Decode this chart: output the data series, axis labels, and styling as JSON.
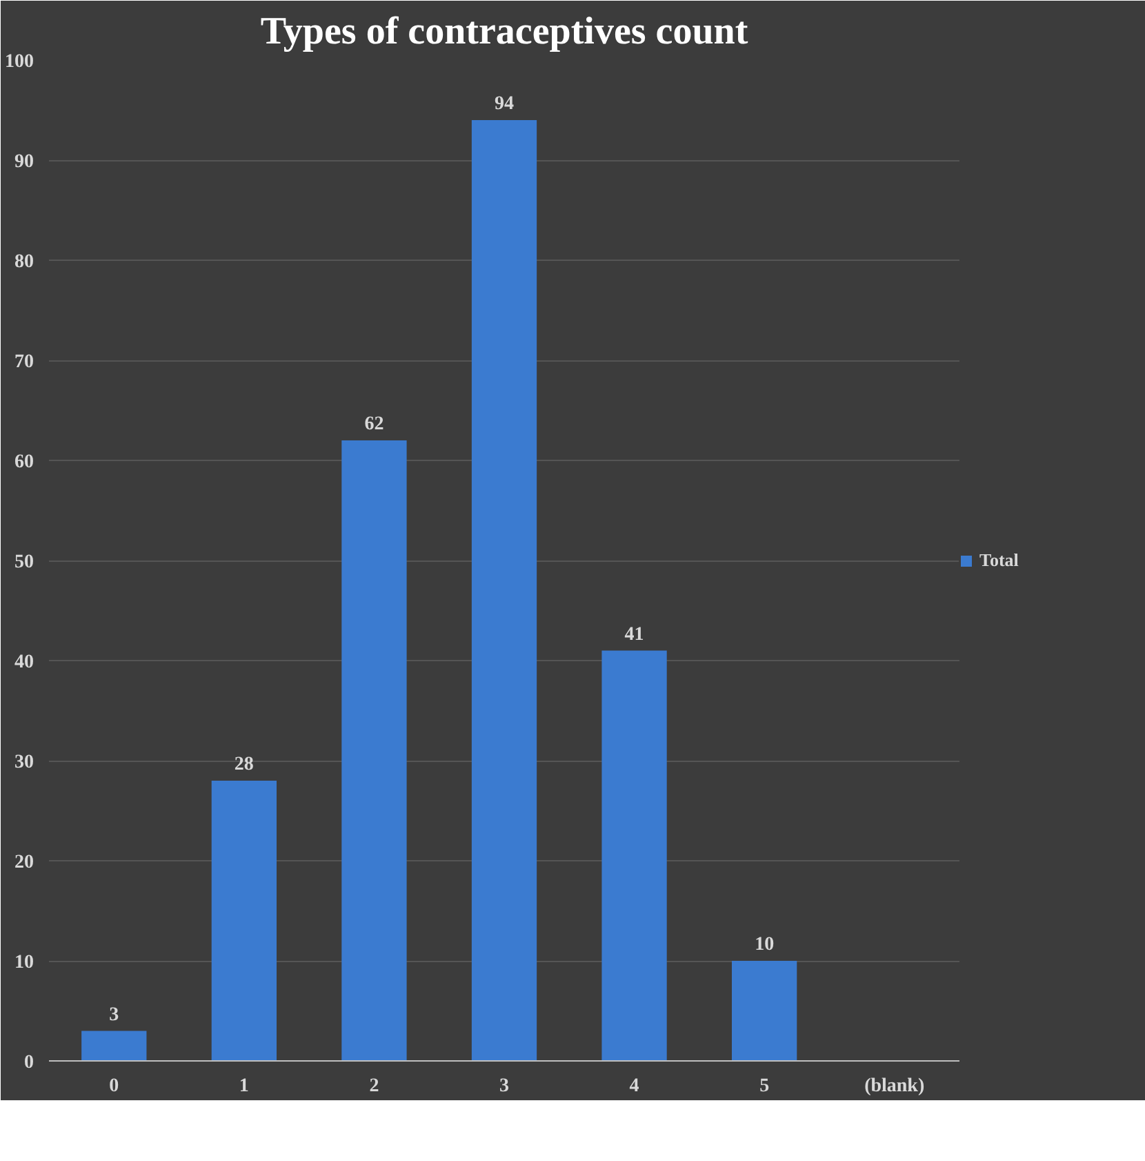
{
  "chart_data": {
    "type": "bar",
    "title": "Types of contraceptives count",
    "categories": [
      "0",
      "1",
      "2",
      "3",
      "4",
      "5",
      "(blank)"
    ],
    "series": [
      {
        "name": "Total",
        "color": "#3b7bd0",
        "values": [
          3,
          28,
          62,
          94,
          41,
          10,
          null
        ]
      }
    ],
    "ylim": [
      0,
      100
    ],
    "yticks": [
      0,
      10,
      20,
      30,
      40,
      50,
      60,
      70,
      80,
      90,
      100
    ],
    "grid": "y",
    "legend": "right",
    "data_labels": true
  }
}
